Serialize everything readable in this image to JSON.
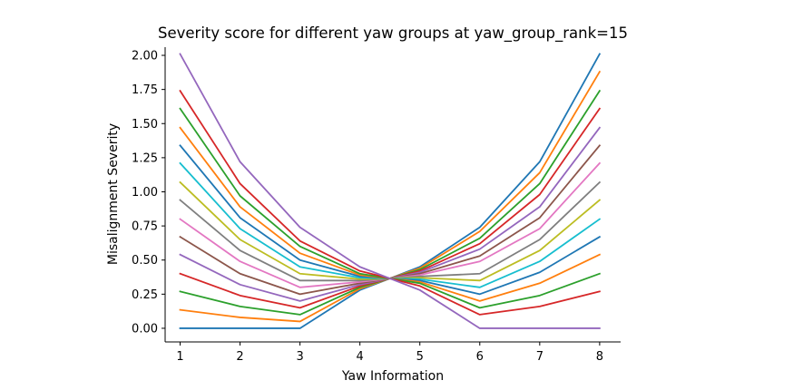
{
  "chart_data": {
    "type": "line",
    "title": "Severity score for different yaw groups at yaw_group_rank=15",
    "xlabel": "Yaw Information",
    "ylabel": "Misalignment Severity",
    "x": [
      1,
      2,
      3,
      4,
      5,
      6,
      7,
      8
    ],
    "x_ticks": [
      "1",
      "2",
      "3",
      "4",
      "5",
      "6",
      "7",
      "8"
    ],
    "xlim": [
      0.75,
      8.35
    ],
    "ylim": [
      -0.1,
      2.06
    ],
    "y_ticks": [
      "0.00",
      "0.25",
      "0.50",
      "0.75",
      "1.00",
      "1.25",
      "1.50",
      "1.75",
      "2.00"
    ],
    "grid": false,
    "spines": "left-bottom",
    "series": [
      {
        "color": "#1f77b4",
        "values": [
          0.0,
          0.0,
          0.0,
          0.28,
          0.45,
          0.74,
          1.22,
          2.01
        ]
      },
      {
        "color": "#ff7f0e",
        "values": [
          0.135,
          0.08,
          0.05,
          0.29,
          0.44,
          0.71,
          1.14,
          1.88
        ]
      },
      {
        "color": "#2ca02c",
        "values": [
          0.27,
          0.16,
          0.1,
          0.3,
          0.43,
          0.66,
          1.06,
          1.74
        ]
      },
      {
        "color": "#d62728",
        "values": [
          0.4,
          0.24,
          0.15,
          0.31,
          0.42,
          0.62,
          0.98,
          1.61
        ]
      },
      {
        "color": "#9467bd",
        "values": [
          0.54,
          0.32,
          0.2,
          0.32,
          0.41,
          0.58,
          0.89,
          1.47
        ]
      },
      {
        "color": "#8c564b",
        "values": [
          0.67,
          0.4,
          0.25,
          0.33,
          0.4,
          0.53,
          0.81,
          1.34
        ]
      },
      {
        "color": "#e377c2",
        "values": [
          0.8,
          0.49,
          0.3,
          0.34,
          0.39,
          0.49,
          0.73,
          1.21
        ]
      },
      {
        "color": "#7f7f7f",
        "values": [
          0.94,
          0.57,
          0.35,
          0.35,
          0.38,
          0.4,
          0.65,
          1.07
        ]
      },
      {
        "color": "#bcbd22",
        "values": [
          1.07,
          0.65,
          0.4,
          0.36,
          0.37,
          0.35,
          0.57,
          0.94
        ]
      },
      {
        "color": "#17becf",
        "values": [
          1.21,
          0.73,
          0.45,
          0.37,
          0.36,
          0.3,
          0.49,
          0.8
        ]
      },
      {
        "color": "#1f77b4",
        "values": [
          1.34,
          0.81,
          0.5,
          0.38,
          0.35,
          0.25,
          0.41,
          0.67
        ]
      },
      {
        "color": "#ff7f0e",
        "values": [
          1.47,
          0.89,
          0.55,
          0.39,
          0.34,
          0.2,
          0.33,
          0.54
        ]
      },
      {
        "color": "#2ca02c",
        "values": [
          1.61,
          0.97,
          0.6,
          0.4,
          0.33,
          0.15,
          0.24,
          0.4
        ]
      },
      {
        "color": "#d62728",
        "values": [
          1.74,
          1.06,
          0.64,
          0.42,
          0.31,
          0.1,
          0.16,
          0.27
        ]
      },
      {
        "color": "#9467bd",
        "values": [
          2.01,
          1.22,
          0.74,
          0.45,
          0.28,
          0.0,
          0.0,
          0.0
        ]
      }
    ]
  }
}
